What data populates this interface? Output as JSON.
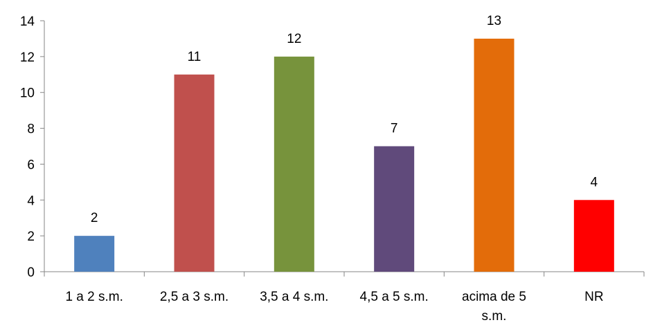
{
  "chart_data": {
    "type": "bar",
    "categories": [
      "1 a 2 s.m.",
      "2,5 a 3 s.m.",
      "3,5 a 4 s.m.",
      "4,5 a 5 s.m.",
      "acima de 5 s.m.",
      "NR"
    ],
    "category_lines": [
      [
        "1 a 2 s.m."
      ],
      [
        "2,5 a 3 s.m."
      ],
      [
        "3,5 a 4 s.m."
      ],
      [
        "4,5 a 5 s.m."
      ],
      [
        "acima de 5",
        "s.m."
      ],
      [
        "NR"
      ]
    ],
    "values": [
      2,
      11,
      12,
      7,
      13,
      4
    ],
    "data_labels": [
      "2",
      "11",
      "12",
      "7",
      "13",
      "4"
    ],
    "colors": [
      "#4f81bd",
      "#c0504d",
      "#77933c",
      "#604a7b",
      "#e36c0a",
      "#ff0000"
    ],
    "title": "",
    "xlabel": "",
    "ylabel": "",
    "ylim": [
      0,
      14
    ],
    "yticks": [
      0,
      2,
      4,
      6,
      8,
      10,
      12,
      14
    ],
    "grid": false,
    "legend": "none"
  }
}
